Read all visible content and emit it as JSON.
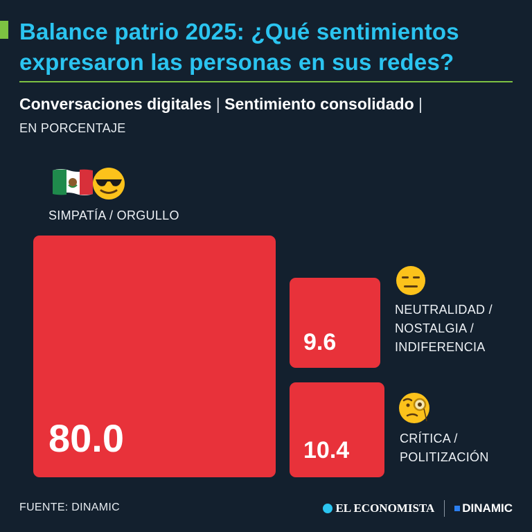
{
  "header": {
    "title_line1": "Balance patrio 2025: ¿Qué sentimientos",
    "title_line2": "expresaron las personas en sus redes?",
    "subtitle_part1": "Conversaciones digitales",
    "subtitle_part2": "Sentimiento consolidado",
    "separator": "|",
    "units": "EN PORCENTAJE"
  },
  "chart_data": {
    "type": "treemap",
    "categories": [
      "SIMPATÍA / ORGULLO",
      "NEUTRALIDAD / NOSTALGIA / INDIFERENCIA",
      "CRÍTICA / POLITIZACIÓN"
    ],
    "values": [
      80.0,
      9.6,
      10.4
    ],
    "value_labels": [
      "80.0",
      "9.6",
      "10.4"
    ],
    "label_lines": [
      [
        "SIMPATÍA / ORGULLO"
      ],
      [
        "NEUTRALIDAD /",
        "NOSTALGIA /",
        "INDIFERENCIA"
      ],
      [
        "CRÍTICA /",
        "POLITIZACIÓN"
      ]
    ],
    "icons": [
      [
        "mexico-flag-icon",
        "sunglasses-face-icon"
      ],
      [
        "neutral-face-icon"
      ],
      [
        "monocle-face-icon"
      ]
    ],
    "color": "#e8323a"
  },
  "footer": {
    "source": "FUENTE: DINAMIC",
    "logo1": "EL ECONOMISTA",
    "logo2": "DINAMIC"
  },
  "colors": {
    "background": "#13202e",
    "title": "#2bc4f0",
    "accent": "#7dc242",
    "tile": "#e8323a"
  }
}
